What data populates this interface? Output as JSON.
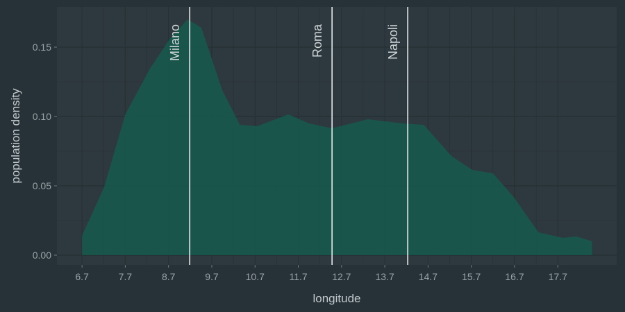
{
  "chart_data": {
    "type": "area",
    "x_label": "longitude",
    "y_label": "population density",
    "x": [
      6.7,
      7.21,
      7.7,
      8.26,
      8.74,
      9.14,
      9.46,
      9.94,
      10.35,
      10.75,
      11.47,
      11.95,
      12.48,
      13.31,
      14.11,
      14.6,
      15.24,
      15.72,
      16.2,
      16.69,
      17.25,
      17.81,
      18.13,
      18.49
    ],
    "values": [
      0.014,
      0.049,
      0.1015,
      0.134,
      0.1565,
      0.17,
      0.164,
      0.119,
      0.094,
      0.093,
      0.1015,
      0.095,
      0.0915,
      0.098,
      0.095,
      0.094,
      0.0715,
      0.0615,
      0.059,
      0.0415,
      0.0165,
      0.0125,
      0.0135,
      0.01
    ],
    "color": "#17594d",
    "xlim": [
      6.12,
      19.06
    ],
    "ylim": [
      -0.007,
      0.179
    ],
    "xticks": [
      6.7,
      7.7,
      8.7,
      9.7,
      10.7,
      11.7,
      12.7,
      13.7,
      14.7,
      15.7,
      16.7,
      17.7
    ],
    "yticks": [
      {
        "value": 0,
        "label": "0.00"
      },
      {
        "value": 0.05,
        "label": "0.05"
      },
      {
        "value": 0.1,
        "label": "0.10"
      },
      {
        "value": 0.15,
        "label": "0.15"
      }
    ],
    "grid": true,
    "annotations": [
      {
        "label": "Milano",
        "x": 9.19
      },
      {
        "label": "Roma",
        "x": 12.48
      },
      {
        "label": "Napoli",
        "x": 14.23
      }
    ]
  }
}
